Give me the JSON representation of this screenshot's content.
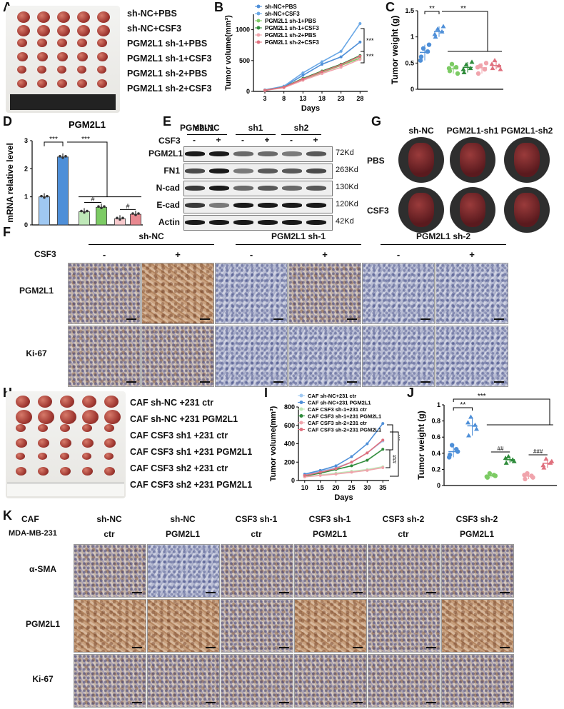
{
  "panelA": {
    "letter": "A",
    "labels": [
      "sh-NC+PBS",
      "sh-NC+CSF3",
      "PGM2L1 sh-1+PBS",
      "PGM2L1 sh-1+CSF3",
      "PGM2L1 sh-2+PBS",
      "PGM2L1 sh-2+CSF3"
    ]
  },
  "panelB": {
    "letter": "B",
    "ylabel": "Tumor volume(mm³)",
    "xlabel": "Days",
    "sig": "***"
  },
  "panelC": {
    "letter": "C",
    "ylabel": "Tumor weight (g)",
    "sig": "**"
  },
  "panelD": {
    "letter": "D",
    "title": "PGM2L1",
    "ylabel": "mRNA relative  level",
    "sig": "***",
    "hash": "#"
  },
  "panelE": {
    "letter": "E",
    "gene": "PGM2L1",
    "groups": [
      "sh-NC",
      "sh1",
      "sh2"
    ],
    "csf3": "CSF3",
    "signs": [
      "-",
      "+",
      "-",
      "+",
      "-",
      "+"
    ],
    "rows": [
      {
        "name": "PGM2L1",
        "kd": "72Kd"
      },
      {
        "name": "FN1",
        "kd": "263Kd"
      },
      {
        "name": "N-cad",
        "kd": "130Kd"
      },
      {
        "name": "E-cad",
        "kd": "120Kd"
      },
      {
        "name": "Actin",
        "kd": "42Kd"
      }
    ]
  },
  "panelG": {
    "letter": "G",
    "cols": [
      "sh-NC",
      "PGM2L1-sh1",
      "PGM2L1-sh2"
    ],
    "rows": [
      "PBS",
      "CSF3"
    ]
  },
  "panelF": {
    "letter": "F",
    "groups": [
      "sh-NC",
      "PGM2L1 sh-1",
      "PGM2L1 sh-2"
    ],
    "csf3": "CSF3",
    "signs": [
      "-",
      "+",
      "-",
      "+",
      "-",
      "+"
    ],
    "rows": [
      "PGM2L1",
      "Ki-67"
    ]
  },
  "panelH": {
    "letter": "H",
    "labels": [
      "CAF sh-NC +231 ctr",
      "CAF sh-NC +231 PGM2L1",
      "CAF CSF3 sh1 +231 ctr",
      "CAF CSF3 sh1 +231 PGM2L1",
      "CAF CSF3 sh2 +231 ctr",
      "CAF CSF3 sh2 +231 PGM2L1"
    ]
  },
  "panelI": {
    "letter": "I",
    "ylabel": "Tumor volume(mm³)",
    "xlabel": "Days",
    "sig": "***",
    "hash": "###"
  },
  "panelJ": {
    "letter": "J",
    "ylabel": "Tumor weight (g)",
    "sig2": "**",
    "sig3": "***",
    "hash2": "##",
    "hash3": "###"
  },
  "panelK": {
    "letter": "K",
    "row1label": "CAF",
    "row2label": "MDA-MB-231",
    "caf": [
      "sh-NC",
      "sh-NC",
      "CSF3 sh-1",
      "CSF3 sh-1",
      "CSF3 sh-2",
      "CSF3 sh-2"
    ],
    "mda": [
      "ctr",
      "PGM2L1",
      "ctr",
      "PGM2L1",
      "ctr",
      "PGM2L1"
    ],
    "rows": [
      "α-SMA",
      "PGM2L1",
      "Ki-67"
    ]
  },
  "chart_data": [
    {
      "type": "line",
      "title": "",
      "xlabel": "Days",
      "ylabel": "Tumor volume(mm³)",
      "x": [
        3,
        8,
        13,
        18,
        23,
        28
      ],
      "ylim": [
        0,
        1250
      ],
      "yticks": [
        0,
        500,
        1000
      ],
      "series": [
        {
          "name": "sh-NC+PBS",
          "color": "#4e8fd8",
          "values": [
            20,
            75,
            260,
            440,
            560,
            800
          ]
        },
        {
          "name": "sh-NC+CSF3",
          "color": "#6aa8e6",
          "values": [
            25,
            85,
            300,
            480,
            650,
            1100
          ]
        },
        {
          "name": "PGM2L1 sh-1+PBS",
          "color": "#7ccb64",
          "values": [
            18,
            65,
            190,
            310,
            420,
            540
          ]
        },
        {
          "name": "PGM2L1 sh-1+CSF3",
          "color": "#2e8b3a",
          "values": [
            18,
            70,
            210,
            330,
            440,
            580
          ]
        },
        {
          "name": "PGM2L1 sh-2+PBS",
          "color": "#f0a4ac",
          "values": [
            16,
            60,
            180,
            290,
            390,
            520
          ]
        },
        {
          "name": "PGM2L1 sh-2+CSF3",
          "color": "#e0707e",
          "values": [
            18,
            68,
            200,
            320,
            430,
            570
          ]
        }
      ],
      "legend": "top-left",
      "grid": false
    },
    {
      "type": "scatter",
      "title": "",
      "ylabel": "Tumor weight (g)",
      "ylim": [
        0,
        1.5
      ],
      "yticks": [
        0,
        0.5,
        1.0,
        1.5
      ],
      "groups": [
        {
          "color": "#4e8fd8",
          "values": [
            0.62,
            0.72,
            0.78,
            0.85,
            0.55
          ]
        },
        {
          "color": "#4e8fd8",
          "values": [
            1.0,
            1.1,
            1.15,
            1.2,
            1.05
          ]
        },
        {
          "color": "#7ccb64",
          "values": [
            0.35,
            0.42,
            0.48,
            0.3,
            0.4
          ]
        },
        {
          "color": "#2e8b3a",
          "values": [
            0.32,
            0.4,
            0.47,
            0.52,
            0.38
          ]
        },
        {
          "color": "#f0a4ac",
          "values": [
            0.3,
            0.38,
            0.45,
            0.5,
            0.42
          ]
        },
        {
          "color": "#e0707e",
          "values": [
            0.4,
            0.45,
            0.55,
            0.38,
            0.48
          ]
        }
      ]
    },
    {
      "type": "bar",
      "title": "PGM2L1",
      "ylabel": "mRNA relative  level",
      "ylim": [
        0,
        3
      ],
      "yticks": [
        0,
        1,
        2,
        3
      ],
      "values": [
        1.0,
        2.42,
        0.47,
        0.63,
        0.22,
        0.38
      ],
      "colors": [
        "#9fc8f2",
        "#4e8fd8",
        "#bfe8b8",
        "#7ccb64",
        "#f7c9cc",
        "#e88890"
      ]
    },
    {
      "type": "line",
      "title": "",
      "xlabel": "Days",
      "ylabel": "Tumor volume(mm³)",
      "x": [
        10,
        15,
        20,
        25,
        30,
        35
      ],
      "ylim": [
        0,
        800
      ],
      "yticks": [
        0,
        200,
        400,
        600,
        800
      ],
      "series": [
        {
          "name": "CAF sh-NC+231 ctr",
          "color": "#9fc8f2",
          "values": [
            60,
            100,
            140,
            200,
            300,
            430
          ]
        },
        {
          "name": "CAF sh-NC+231 PGM2L1",
          "color": "#4e8fd8",
          "values": [
            70,
            110,
            160,
            260,
            400,
            620
          ]
        },
        {
          "name": "CAF CSF3 sh-1+231 ctr",
          "color": "#bfe8b8",
          "values": [
            40,
            60,
            80,
            100,
            120,
            150
          ]
        },
        {
          "name": "CAF CSF3 sh-1+231 PGM2L1",
          "color": "#2e8b3a",
          "values": [
            50,
            80,
            120,
            160,
            220,
            340
          ]
        },
        {
          "name": "CAF CSF3 sh-2+231 ctr",
          "color": "#f0a4ac",
          "values": [
            40,
            55,
            70,
            90,
            110,
            140
          ]
        },
        {
          "name": "CAF CSF3 sh-2+231 PGM2L1",
          "color": "#e0707e",
          "values": [
            55,
            90,
            130,
            200,
            300,
            440
          ]
        }
      ],
      "legend": "top-left",
      "grid": false
    },
    {
      "type": "scatter",
      "title": "",
      "ylabel": "Tumor weight (g)",
      "ylim": [
        0,
        1.0
      ],
      "yticks": [
        0,
        0.2,
        0.4,
        0.6,
        0.8,
        1.0
      ],
      "groups": [
        {
          "color": "#4e8fd8",
          "values": [
            0.38,
            0.45,
            0.5,
            0.42,
            0.35
          ]
        },
        {
          "color": "#4e8fd8",
          "values": [
            0.62,
            0.75,
            0.85,
            0.7,
            0.78
          ]
        },
        {
          "color": "#7ccb64",
          "values": [
            0.1,
            0.13,
            0.15,
            0.12,
            0.11
          ]
        },
        {
          "color": "#2e8b3a",
          "values": [
            0.28,
            0.32,
            0.36,
            0.3,
            0.34
          ]
        },
        {
          "color": "#f0a4ac",
          "values": [
            0.08,
            0.12,
            0.15,
            0.1,
            0.13
          ]
        },
        {
          "color": "#e0707e",
          "values": [
            0.22,
            0.28,
            0.33,
            0.3,
            0.25
          ]
        }
      ]
    }
  ]
}
